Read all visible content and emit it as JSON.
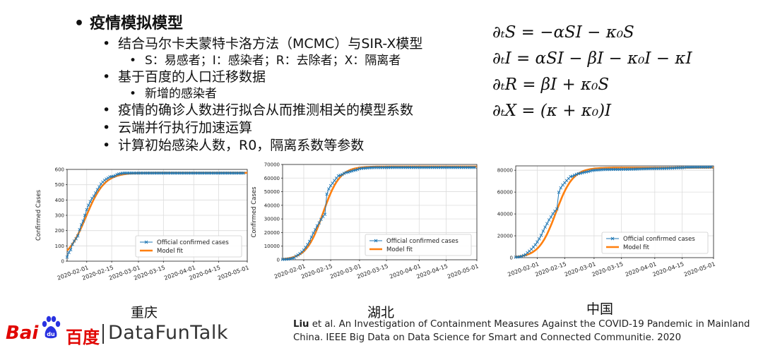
{
  "bullets": [
    {
      "level": 1,
      "text": "疫情模拟模型"
    },
    {
      "level": 2,
      "text": "结合马尔卡夫蒙特卡洛方法（MCMC）与SIR-X模型"
    },
    {
      "level": 3,
      "text": "S：易感者；I：感染者；R：去除者；X：隔离者"
    },
    {
      "level": 2,
      "text": "基于百度的人口迁移数据"
    },
    {
      "level": 3,
      "text": "新增的感染者"
    },
    {
      "level": 2,
      "text": "疫情的确诊人数进行拟合从而推测相关的模型系数"
    },
    {
      "level": 2,
      "text": "云端并行执行加速运算"
    },
    {
      "level": 2,
      "text": "计算初始感染人数，R0，隔离系数等参数"
    }
  ],
  "equations": [
    "∂ₜS = −αSI − κ₀S",
    "∂ₜI = αSI − βI − κ₀I − κI",
    "∂ₜR = βI + κ₀S",
    "∂ₜX = (κ + κ₀)I"
  ],
  "chart_data": [
    {
      "type": "line",
      "region": "重庆",
      "xlabel": "",
      "ylabel": "Confirmed Cases",
      "x_tick_labels": [
        "2020-02-01",
        "2020-02-15",
        "2020-03-01",
        "2020-03-15",
        "2020-04-01",
        "2020-04-15",
        "2020-05-01"
      ],
      "y_ticks": [
        0,
        100,
        200,
        300,
        400,
        500,
        600
      ],
      "ylim": [
        0,
        600
      ],
      "xlim_days_from_jan21": [
        0,
        101
      ],
      "legend": {
        "position": "lower-right"
      },
      "series": [
        {
          "name": "Official confirmed cases",
          "marker": "x",
          "color": "#1f77b4",
          "values": [
            27,
            57,
            75,
            110,
            132,
            147,
            165,
            206,
            238,
            262,
            300,
            337,
            366,
            389,
            411,
            426,
            446,
            468,
            486,
            505,
            518,
            529,
            537,
            544,
            551,
            553,
            555,
            560,
            567,
            570,
            573,
            575,
            576,
            576,
            576,
            576,
            576,
            576,
            576,
            576,
            576,
            576,
            576,
            576,
            576,
            576,
            576,
            576,
            576,
            576,
            576,
            576,
            576,
            576,
            576,
            576,
            576,
            576,
            576,
            576,
            576,
            576,
            576,
            576,
            576,
            576,
            576,
            576,
            576,
            576,
            576,
            576,
            576,
            576,
            576,
            576,
            576,
            576,
            576,
            576,
            576,
            576,
            576,
            576,
            576,
            576,
            576,
            576,
            576,
            576,
            576,
            576,
            576,
            576,
            576,
            576,
            576,
            576,
            576,
            576
          ]
        },
        {
          "name": "Model fit",
          "color": "#ff7f0e",
          "model": {
            "K": 578,
            "r": 0.19,
            "t0": 10.5,
            "n": 101
          }
        }
      ]
    },
    {
      "type": "line",
      "region": "湖北",
      "xlabel": "",
      "ylabel": "Confirmed Cases",
      "x_tick_labels": [
        "2020-02-01",
        "2020-02-15",
        "2020-03-01",
        "2020-03-15",
        "2020-04-01",
        "2020-04-15",
        "2020-05-01"
      ],
      "y_ticks": [
        0,
        10000,
        20000,
        30000,
        40000,
        50000,
        60000,
        70000
      ],
      "ylim": [
        0,
        70000
      ],
      "xlim_days_from_jan21": [
        0,
        101
      ],
      "legend": {
        "position": "lower-right"
      },
      "series": [
        {
          "name": "Official confirmed cases",
          "marker": "x",
          "color": "#1f77b4",
          "values": [
            270,
            375,
            444,
            549,
            729,
            1052,
            1423,
            2714,
            3554,
            4586,
            5806,
            7153,
            9074,
            11177,
            13522,
            16678,
            19665,
            22112,
            24953,
            27100,
            29631,
            31728,
            33366,
            48206,
            51986,
            54406,
            56249,
            58182,
            59989,
            61682,
            62031,
            62662,
            63454,
            64084,
            64287,
            64786,
            65187,
            65596,
            65914,
            66337,
            66907,
            67103,
            67217,
            67332,
            67466,
            67592,
            67666,
            67707,
            67743,
            67760,
            67773,
            67781,
            67786,
            67790,
            67794,
            67798,
            67799,
            67800,
            67800,
            67801,
            67801,
            67801,
            67801,
            67801,
            67802,
            67802,
            67802,
            67802,
            67803,
            67803,
            67803,
            67803,
            67803,
            67803,
            67803,
            67803,
            67803,
            67803,
            67803,
            67803,
            67803,
            67803,
            67803,
            67803,
            67803,
            67803,
            67803,
            67803,
            67803,
            67803,
            67803,
            67803,
            67803,
            67803,
            67803,
            67803,
            67803,
            67803,
            67803,
            67803,
            67803
          ]
        },
        {
          "name": "Model fit",
          "color": "#ff7f0e",
          "model": {
            "K": 68500,
            "r": 0.23,
            "t0": 21,
            "n": 101
          }
        }
      ]
    },
    {
      "type": "line",
      "region": "中国",
      "xlabel": "",
      "ylabel": "",
      "x_tick_labels": [
        "2020-02-01",
        "2020-02-15",
        "2020-03-01",
        "2020-03-15",
        "2020-04-01",
        "2020-04-15",
        "2020-05-01"
      ],
      "y_ticks": [
        0,
        20000,
        40000,
        60000,
        80000
      ],
      "ylim": [
        0,
        84000
      ],
      "xlim_days_from_jan21": [
        0,
        101
      ],
      "legend": {
        "position": "lower-right"
      },
      "series": [
        {
          "name": "Official confirmed cases",
          "marker": "x",
          "color": "#1f77b4",
          "values": [
            440,
            571,
            830,
            1287,
            1975,
            2744,
            4515,
            5974,
            7711,
            9692,
            11791,
            14380,
            17205,
            20438,
            24324,
            28018,
            31161,
            34546,
            37198,
            40171,
            42638,
            44653,
            59804,
            63851,
            66492,
            68500,
            70548,
            72436,
            74185,
            74576,
            75465,
            76288,
            76936,
            77150,
            77658,
            78064,
            78497,
            78824,
            79251,
            79824,
            80026,
            80151,
            80270,
            80409,
            80552,
            80651,
            80695,
            80735,
            80754,
            80778,
            80793,
            80813,
            80824,
            80844,
            80860,
            80881,
            80894,
            80928,
            80967,
            81008,
            81054,
            81093,
            81171,
            81218,
            81285,
            81340,
            81394,
            81439,
            81470,
            81518,
            81554,
            81589,
            81620,
            81639,
            81669,
            81708,
            81740,
            81802,
            81865,
            81907,
            81953,
            82052,
            82160,
            82249,
            82295,
            82341,
            82395,
            82719,
            82735,
            82758,
            82788,
            82798,
            82804,
            82816,
            82827,
            82830,
            82836,
            82858,
            82862,
            82874,
            82875
          ]
        },
        {
          "name": "Model fit",
          "color": "#ff7f0e",
          "model": {
            "K": 82400,
            "r": 0.23,
            "t0": 20.5,
            "n": 101
          }
        }
      ]
    }
  ],
  "citation": {
    "author": "Liu",
    "text": " et al. An Investigation of Containment Measures Against the COVID-19 Pandemic in Mainland China. IEEE Big Data on Data Science for Smart and Connected Communitie. 2020"
  },
  "logo": {
    "bai": "Bai",
    "du_cn": "百度",
    "brand": "DataFunTalk",
    "brand_color": "#e10602"
  }
}
